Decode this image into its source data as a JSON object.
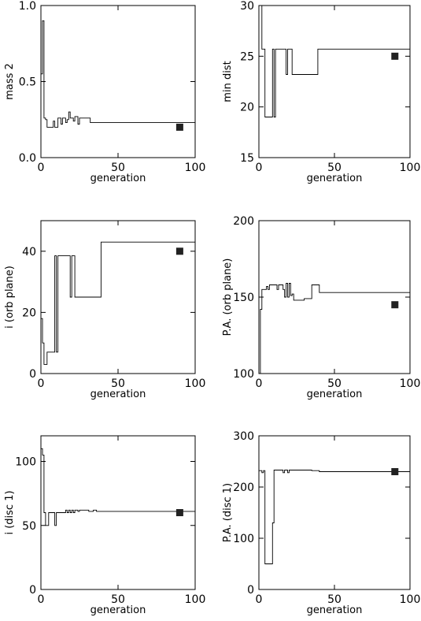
{
  "chart_data": [
    {
      "type": "line",
      "xlabel": "generation",
      "ylabel": "mass 2",
      "xlim": [
        0,
        100
      ],
      "ylim": [
        0,
        1
      ],
      "xticks": [
        0,
        50,
        100
      ],
      "yticks": [
        0,
        0.5,
        1
      ],
      "ytick_labels": [
        "0.0",
        "0.5",
        "1.0"
      ],
      "series": [
        {
          "x": [
            0,
            1,
            2,
            3,
            4,
            5,
            6,
            7,
            8,
            9,
            10,
            11,
            12,
            13,
            14,
            15,
            16,
            17,
            18,
            19,
            20,
            21,
            22,
            23,
            24,
            25,
            26,
            27,
            28,
            29,
            30,
            31,
            32,
            33,
            34,
            35,
            36,
            38,
            40,
            45,
            50,
            55,
            60,
            65,
            70,
            75,
            80,
            85,
            90,
            95,
            100
          ],
          "y": [
            0.55,
            0.9,
            0.26,
            0.25,
            0.2,
            0.2,
            0.2,
            0.2,
            0.24,
            0.2,
            0.2,
            0.26,
            0.26,
            0.22,
            0.26,
            0.26,
            0.23,
            0.25,
            0.3,
            0.26,
            0.26,
            0.24,
            0.27,
            0.27,
            0.22,
            0.26,
            0.26,
            0.26,
            0.26,
            0.26,
            0.26,
            0.26,
            0.23,
            0.23,
            0.23,
            0.23,
            0.23,
            0.23,
            0.23,
            0.23,
            0.23,
            0.23,
            0.23,
            0.23,
            0.23,
            0.23,
            0.23,
            0.23,
            0.23,
            0.23,
            0.23
          ]
        }
      ],
      "marker": {
        "x": 90,
        "y": 0.2
      }
    },
    {
      "type": "line",
      "xlabel": "generation",
      "ylabel": "min dist",
      "xlim": [
        0,
        100
      ],
      "ylim": [
        15,
        30
      ],
      "xticks": [
        0,
        50,
        100
      ],
      "yticks": [
        15,
        20,
        25,
        30
      ],
      "ytick_labels": [
        "15",
        "20",
        "25",
        "30"
      ],
      "series": [
        {
          "x": [
            0,
            1,
            2,
            3,
            4,
            5,
            6,
            7,
            8,
            9,
            10,
            11,
            12,
            13,
            14,
            15,
            16,
            17,
            18,
            19,
            20,
            21,
            22,
            23,
            24,
            25,
            30,
            35,
            38,
            39,
            40,
            50,
            60,
            70,
            80,
            90,
            100
          ],
          "y": [
            30,
            30,
            25.7,
            25.7,
            19,
            19,
            19,
            19,
            19,
            25.7,
            19,
            25.7,
            25.7,
            25.7,
            25.7,
            25.7,
            25.7,
            25.7,
            23.2,
            25.7,
            25.7,
            25.7,
            23.2,
            23.2,
            23.2,
            23.2,
            23.2,
            23.2,
            23.2,
            25.7,
            25.7,
            25.7,
            25.7,
            25.7,
            25.7,
            25.7,
            25.7
          ]
        }
      ],
      "marker": {
        "x": 90,
        "y": 25
      }
    },
    {
      "type": "line",
      "xlabel": "generation",
      "ylabel": "i (orb plane)",
      "xlim": [
        0,
        100
      ],
      "ylim": [
        0,
        50
      ],
      "xticks": [
        0,
        50,
        100
      ],
      "yticks": [
        0,
        20,
        40
      ],
      "ytick_labels": [
        "0",
        "20",
        "40"
      ],
      "series": [
        {
          "x": [
            0,
            1,
            2,
            3,
            4,
            5,
            6,
            7,
            8,
            9,
            10,
            11,
            12,
            13,
            14,
            15,
            16,
            17,
            18,
            19,
            20,
            21,
            22,
            23,
            24,
            25,
            30,
            35,
            37,
            38,
            39,
            40,
            50,
            60,
            70,
            80,
            90,
            100
          ],
          "y": [
            18,
            10,
            3,
            3,
            7,
            7,
            7,
            7,
            7,
            38.5,
            7,
            38.5,
            38.5,
            38.5,
            38.5,
            38.5,
            38.5,
            38.5,
            38.5,
            25,
            38.5,
            38.5,
            25,
            25,
            25,
            25,
            25,
            25,
            25,
            25,
            43,
            43,
            43,
            43,
            43,
            43,
            43,
            43
          ]
        }
      ],
      "marker": {
        "x": 90,
        "y": 40
      }
    },
    {
      "type": "line",
      "xlabel": "generation",
      "ylabel": "P.A. (orb plane)",
      "xlim": [
        0,
        100
      ],
      "ylim": [
        100,
        200
      ],
      "xticks": [
        0,
        50,
        100
      ],
      "yticks": [
        100,
        150,
        200
      ],
      "ytick_labels": [
        "100",
        "150",
        "200"
      ],
      "series": [
        {
          "x": [
            0,
            1,
            2,
            3,
            4,
            5,
            6,
            7,
            8,
            9,
            10,
            11,
            12,
            13,
            14,
            15,
            16,
            17,
            18,
            19,
            20,
            21,
            22,
            23,
            24,
            25,
            30,
            34,
            35,
            36,
            37,
            38,
            39,
            40,
            50,
            60,
            70,
            80,
            90,
            100
          ],
          "y": [
            100,
            142,
            155,
            155,
            155,
            157,
            155,
            158,
            158,
            158,
            158,
            158,
            155,
            158,
            158,
            158,
            155,
            150,
            159,
            150,
            159,
            151,
            152,
            148,
            148,
            148,
            149,
            149,
            158,
            158,
            158,
            158,
            158,
            153,
            153,
            153,
            153,
            153,
            153,
            153
          ]
        }
      ],
      "marker": {
        "x": 90,
        "y": 145
      }
    },
    {
      "type": "line",
      "xlabel": "generation",
      "ylabel": "i (disc 1)",
      "xlim": [
        0,
        100
      ],
      "ylim": [
        0,
        120
      ],
      "xticks": [
        0,
        50,
        100
      ],
      "yticks": [
        0,
        50,
        100
      ],
      "ytick_labels": [
        "0",
        "50",
        "100"
      ],
      "series": [
        {
          "x": [
            0,
            1,
            2,
            3,
            4,
            5,
            6,
            7,
            8,
            9,
            10,
            11,
            12,
            13,
            14,
            15,
            16,
            17,
            18,
            19,
            20,
            21,
            22,
            23,
            24,
            25,
            26,
            27,
            28,
            29,
            30,
            31,
            32,
            33,
            34,
            35,
            36,
            37,
            40,
            50,
            60,
            70,
            80,
            90,
            100
          ],
          "y": [
            110,
            105,
            60,
            50,
            50,
            60,
            60,
            60,
            60,
            50,
            60,
            60,
            60,
            60,
            60,
            60,
            62,
            60,
            62,
            60,
            62,
            60,
            62,
            62,
            61,
            62,
            62,
            62,
            62,
            62,
            62,
            61,
            61,
            61,
            62,
            62,
            61,
            61,
            61,
            61,
            61,
            61,
            61,
            61,
            61
          ]
        }
      ],
      "marker": {
        "x": 90,
        "y": 60
      }
    },
    {
      "type": "line",
      "xlabel": "generation",
      "ylabel": "P.A. (disc 1)",
      "xlim": [
        0,
        100
      ],
      "ylim": [
        0,
        300
      ],
      "xticks": [
        0,
        50,
        100
      ],
      "yticks": [
        0,
        100,
        200,
        300
      ],
      "ytick_labels": [
        "0",
        "100",
        "200",
        "300"
      ],
      "series": [
        {
          "x": [
            0,
            1,
            2,
            3,
            4,
            5,
            6,
            7,
            8,
            9,
            10,
            11,
            12,
            13,
            14,
            15,
            16,
            17,
            18,
            19,
            20,
            21,
            22,
            23,
            24,
            25,
            26,
            27,
            28,
            29,
            30,
            35,
            40,
            50,
            60,
            70,
            80,
            90,
            100
          ],
          "y": [
            232,
            232,
            228,
            232,
            50,
            50,
            50,
            50,
            50,
            130,
            233,
            233,
            233,
            233,
            233,
            233,
            228,
            233,
            233,
            228,
            233,
            233,
            233,
            233,
            233,
            233,
            233,
            233,
            233,
            233,
            233,
            232,
            230,
            230,
            230,
            230,
            230,
            230,
            230
          ]
        }
      ],
      "marker": {
        "x": 90,
        "y": 230
      }
    }
  ]
}
